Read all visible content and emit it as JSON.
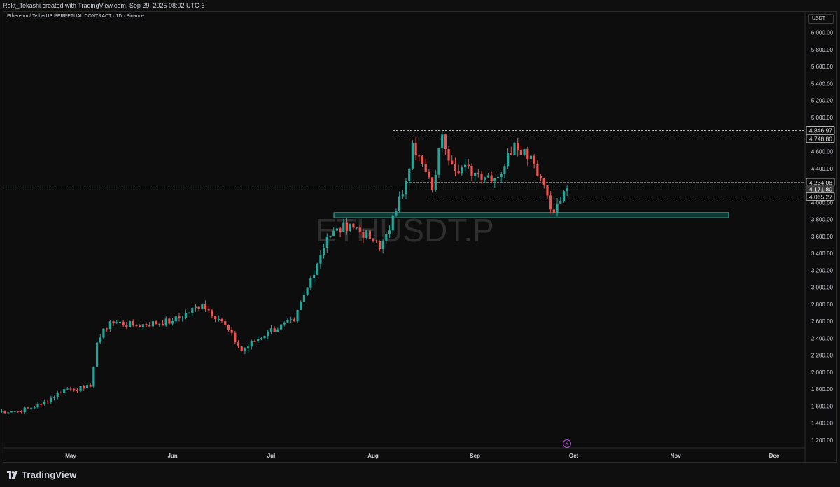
{
  "header": {
    "credit_text": "Rekt_Tekashi created with TradingView.com, Sep 29, 2025 08:02 UTC-6"
  },
  "chart": {
    "symbol_line": "Ethereum / TetherUS PERPETUAL CONTRACT · 1D · Binance",
    "watermark": "ETHUSDT.P",
    "currency": "USDT",
    "y_ticks": [
      "6,000.00",
      "5,800.00",
      "5,600.00",
      "5,400.00",
      "5,200.00",
      "5,000.00",
      "4,800.00",
      "4,600.00",
      "4,400.00",
      "4,200.00",
      "4,000.00",
      "3,800.00",
      "3,600.00",
      "3,400.00",
      "3,200.00",
      "3,000.00",
      "2,800.00",
      "2,600.00",
      "2,400.00",
      "2,200.00",
      "2,000.00",
      "1,800.00",
      "1,600.00",
      "1,400.00",
      "1,200.00"
    ],
    "x_ticks": [
      "May",
      "Jun",
      "Jul",
      "Aug",
      "Sep",
      "Oct",
      "Nov",
      "Dec"
    ],
    "price_labels": [
      {
        "text": "4,846.97",
        "style": "outline"
      },
      {
        "text": "4,748.80",
        "style": "outline"
      },
      {
        "text": "4,234.08",
        "style": "outline"
      },
      {
        "text": "4,171.80",
        "style": "current"
      },
      {
        "text": "09:57:56",
        "style": "countdown"
      },
      {
        "text": "4,065.27",
        "style": "outline"
      }
    ],
    "colors": {
      "up": "#26a69a",
      "down": "#ef5350",
      "zone": "#1f8a7a",
      "background": "#0d0d0d"
    }
  },
  "chart_data": {
    "type": "candlestick",
    "title": "Ethereum / TetherUS PERPETUAL CONTRACT · 1D · Binance",
    "ylim": [
      1100,
      6100
    ],
    "x_ticks": [
      "May",
      "Jun",
      "Jul",
      "Aug",
      "Sep",
      "Oct",
      "Nov",
      "Dec"
    ],
    "grid": false,
    "horizontal_levels": [
      4846.97,
      4748.8,
      4234.08,
      4065.27
    ],
    "zone": {
      "low": 3820,
      "high": 3880
    },
    "last_price": 4171.8,
    "anchors": [
      {
        "date": "2025-04-15",
        "price": 1540
      },
      {
        "date": "2025-04-22",
        "price": 1620
      },
      {
        "date": "2025-04-29",
        "price": 1800
      },
      {
        "date": "2025-05-05",
        "price": 1810
      },
      {
        "date": "2025-05-07",
        "price": 1830
      },
      {
        "date": "2025-05-09",
        "price": 2350
      },
      {
        "date": "2025-05-13",
        "price": 2600
      },
      {
        "date": "2025-05-20",
        "price": 2550
      },
      {
        "date": "2025-06-01",
        "price": 2600
      },
      {
        "date": "2025-06-10",
        "price": 2800
      },
      {
        "date": "2025-06-16",
        "price": 2600
      },
      {
        "date": "2025-06-22",
        "price": 2250
      },
      {
        "date": "2025-06-30",
        "price": 2480
      },
      {
        "date": "2025-07-08",
        "price": 2600
      },
      {
        "date": "2025-07-12",
        "price": 3000
      },
      {
        "date": "2025-07-18",
        "price": 3600
      },
      {
        "date": "2025-07-25",
        "price": 3750
      },
      {
        "date": "2025-08-01",
        "price": 3550
      },
      {
        "date": "2025-08-03",
        "price": 3450
      },
      {
        "date": "2025-08-08",
        "price": 3900
      },
      {
        "date": "2025-08-11",
        "price": 4250
      },
      {
        "date": "2025-08-13",
        "price": 4700
      },
      {
        "date": "2025-08-19",
        "price": 4150
      },
      {
        "date": "2025-08-22",
        "price": 4800
      },
      {
        "date": "2025-08-25",
        "price": 4450
      },
      {
        "date": "2025-09-01",
        "price": 4350
      },
      {
        "date": "2025-09-08",
        "price": 4300
      },
      {
        "date": "2025-09-13",
        "price": 4700
      },
      {
        "date": "2025-09-18",
        "price": 4550
      },
      {
        "date": "2025-09-22",
        "price": 4200
      },
      {
        "date": "2025-09-25",
        "price": 3880
      },
      {
        "date": "2025-09-29",
        "price": 4171.8
      }
    ]
  },
  "footer": {
    "brand": "TradingView"
  }
}
